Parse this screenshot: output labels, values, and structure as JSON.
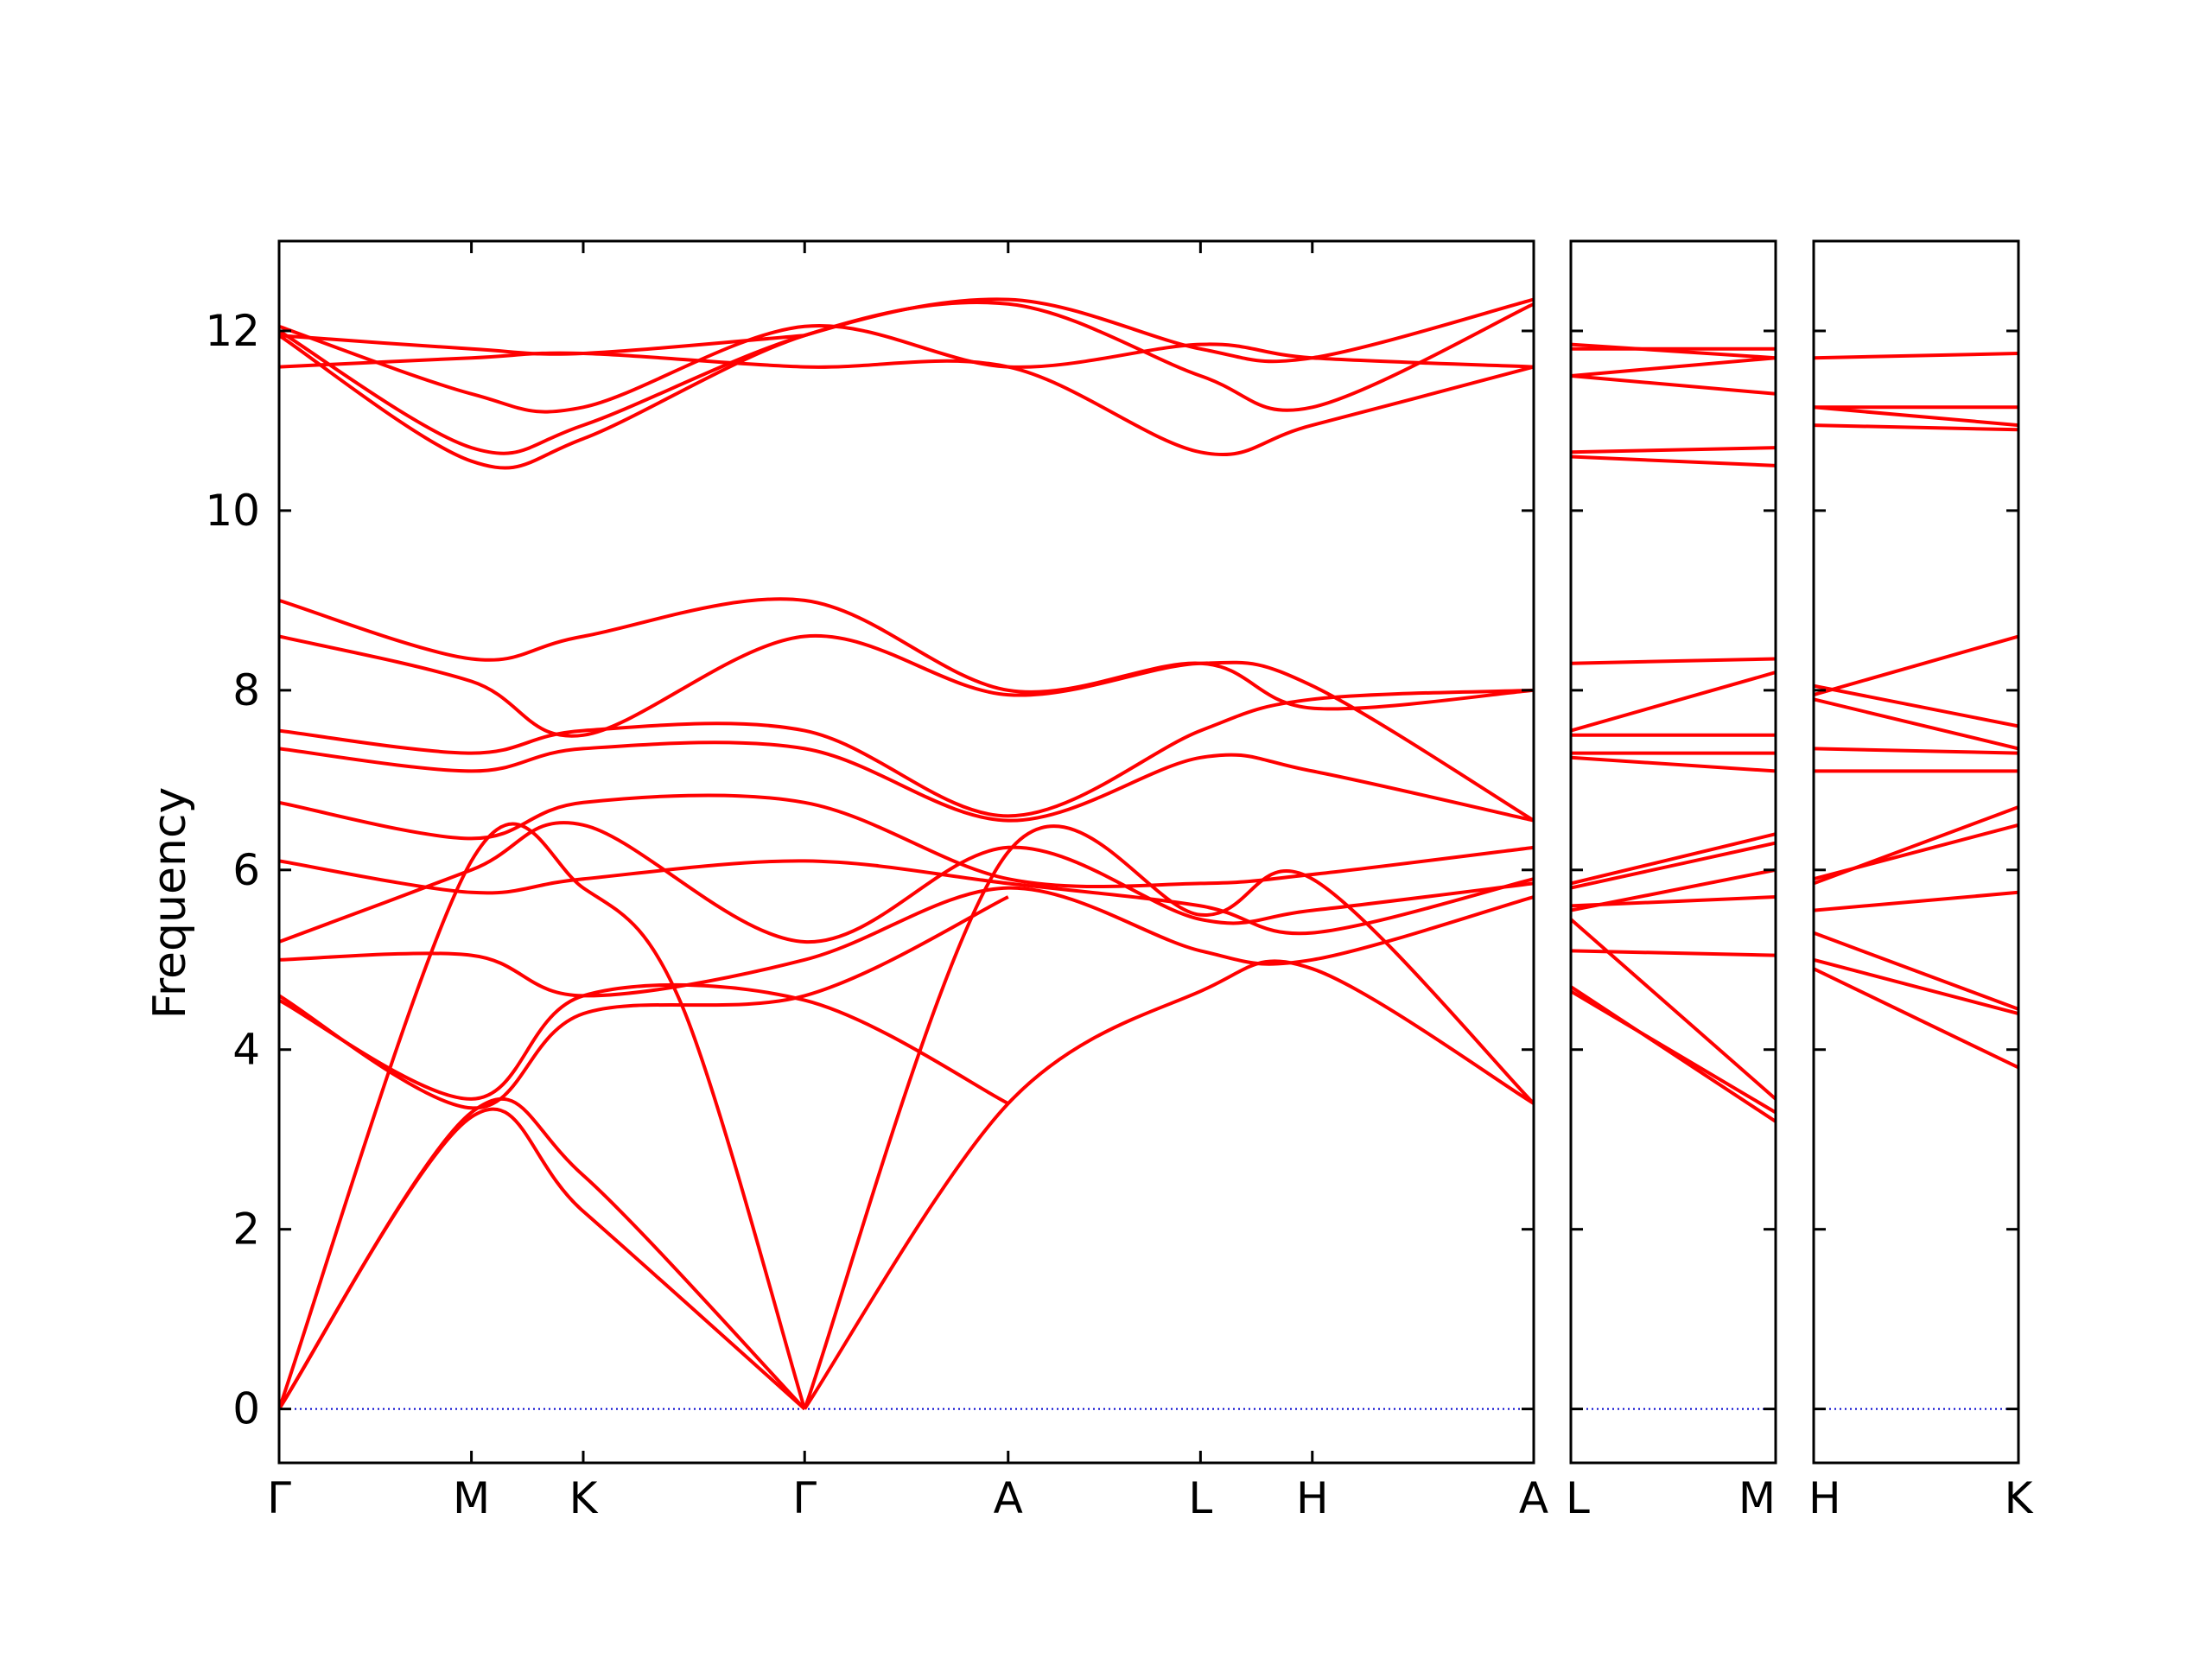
{
  "chart_data": {
    "type": "line",
    "title": "",
    "ylabel": "Frequency",
    "xlabel": "",
    "ylim": [
      -0.6,
      13.0
    ],
    "yticks": [
      0,
      2,
      4,
      6,
      8,
      10,
      12
    ],
    "grid": false,
    "legend": "none",
    "line_color": "#ff0000",
    "zero_line_color": "#0000cc",
    "panels": [
      {
        "x_labels": [
          "Γ",
          "M",
          "K",
          "Γ",
          "A",
          "L",
          "H",
          "A"
        ],
        "x_pos": [
          0,
          0.86,
          1.36,
          2.35,
          3.26,
          4.12,
          4.62,
          5.61
        ],
        "x_range": [
          0,
          5.61
        ],
        "bands": [
          {
            "x": [
              0,
              0.86,
              1.36,
              2.35
            ],
            "y": [
              0,
              3.25,
              2.2,
              0
            ]
          },
          {
            "x": [
              0,
              0.86,
              1.36,
              2.35
            ],
            "y": [
              0,
              3.3,
              2.6,
              0
            ]
          },
          {
            "x": [
              0,
              0.86,
              1.36,
              1.8,
              2.35
            ],
            "y": [
              0,
              6.1,
              5.8,
              4.5,
              0
            ]
          },
          {
            "x": [
              2.35,
              3.26,
              4.12,
              4.62,
              5.61
            ],
            "y": [
              0,
              3.4,
              4.65,
              4.9,
              3.4
            ]
          },
          {
            "x": [
              2.35,
              3.26,
              4.12,
              4.62,
              5.61
            ],
            "y": [
              0,
              6.2,
              5.5,
              5.9,
              3.4
            ]
          },
          {
            "x": [
              0,
              0.86,
              1.36,
              2.35,
              3.26
            ],
            "y": [
              4.55,
              3.45,
              4.6,
              4.55,
              3.4
            ]
          },
          {
            "x": [
              0,
              0.86,
              1.36,
              2.35,
              3.26
            ],
            "y": [
              4.6,
              3.35,
              4.4,
              4.6,
              5.7
            ]
          },
          {
            "x": [
              0,
              0.86,
              1.36,
              2.35,
              3.26,
              4.12,
              4.62,
              5.61
            ],
            "y": [
              5.0,
              5.05,
              4.6,
              5.0,
              5.8,
              5.1,
              5.0,
              5.7
            ]
          },
          {
            "x": [
              0,
              0.86,
              1.36,
              2.35,
              3.26,
              4.12,
              4.62,
              5.61
            ],
            "y": [
              5.2,
              6.0,
              6.5,
              5.2,
              6.25,
              5.45,
              5.55,
              5.85
            ]
          },
          {
            "x": [
              0,
              0.86,
              1.36,
              2.35,
              3.26,
              4.12,
              4.62,
              5.61
            ],
            "y": [
              6.1,
              5.75,
              5.9,
              6.1,
              5.85,
              5.6,
              5.3,
              5.9
            ]
          },
          {
            "x": [
              0,
              0.86,
              1.36,
              2.35,
              3.26,
              4.12,
              4.62,
              5.61
            ],
            "y": [
              6.75,
              6.35,
              6.75,
              6.75,
              5.9,
              5.85,
              5.95,
              6.25
            ]
          },
          {
            "x": [
              0,
              0.86,
              1.36,
              2.35,
              3.26,
              4.12,
              4.62,
              5.61
            ],
            "y": [
              7.35,
              7.1,
              7.35,
              7.35,
              6.55,
              7.25,
              7.1,
              6.55
            ]
          },
          {
            "x": [
              0,
              0.86,
              1.36,
              2.35,
              3.26,
              4.12,
              4.62,
              5.61
            ],
            "y": [
              7.55,
              7.3,
              7.55,
              7.55,
              6.6,
              7.55,
              7.9,
              8.0
            ]
          },
          {
            "x": [
              0,
              0.86,
              1.36,
              2.35,
              3.26,
              4.12,
              4.62,
              5.61
            ],
            "y": [
              8.6,
              8.1,
              7.5,
              8.6,
              7.95,
              8.3,
              8.05,
              6.55
            ]
          },
          {
            "x": [
              0,
              0.86,
              1.36,
              2.35,
              3.26,
              4.12,
              4.62,
              5.61
            ],
            "y": [
              9.0,
              8.35,
              8.6,
              9.0,
              8.0,
              8.3,
              7.8,
              8.0
            ]
          },
          {
            "x": [
              0,
              0.86,
              1.36,
              2.35,
              3.26,
              4.12,
              4.62,
              5.61
            ],
            "y": [
              11.6,
              11.7,
              11.75,
              11.6,
              11.6,
              10.65,
              10.95,
              11.6
            ]
          },
          {
            "x": [
              0,
              0.86,
              1.36,
              2.35,
              3.26,
              4.12,
              4.62,
              5.61
            ],
            "y": [
              11.95,
              10.55,
              10.8,
              11.95,
              12.3,
              11.5,
              11.15,
              12.3
            ]
          },
          {
            "x": [
              0,
              0.86,
              1.36,
              2.35,
              3.26,
              4.12,
              4.62,
              5.61
            ],
            "y": [
              12.0,
              10.7,
              10.95,
              11.95,
              12.35,
              11.8,
              11.7,
              12.35
            ]
          },
          {
            "x": [
              0,
              0.86,
              1.36,
              2.35,
              3.26,
              4.12,
              4.62,
              5.61
            ],
            "y": [
              12.05,
              11.3,
              11.15,
              12.05,
              11.6,
              11.85,
              11.7,
              11.6
            ]
          },
          {
            "x": [
              0,
              0.86,
              1.36,
              2.35
            ],
            "y": [
              11.95,
              11.8,
              11.75,
              11.95
            ]
          }
        ]
      },
      {
        "x_labels": [
          "L",
          "M"
        ],
        "x_pos": [
          0,
          0.86
        ],
        "x_range": [
          0,
          0.86
        ],
        "bands": [
          {
            "x": [
              0,
              0.86
            ],
            "y": [
              4.7,
              3.2
            ]
          },
          {
            "x": [
              0,
              0.86
            ],
            "y": [
              4.65,
              3.3
            ]
          },
          {
            "x": [
              0,
              0.86
            ],
            "y": [
              5.45,
              3.45
            ]
          },
          {
            "x": [
              0,
              0.86
            ],
            "y": [
              5.1,
              5.05
            ]
          },
          {
            "x": [
              0,
              0.86
            ],
            "y": [
              5.6,
              5.7
            ]
          },
          {
            "x": [
              0,
              0.86
            ],
            "y": [
              5.55,
              6.0
            ]
          },
          {
            "x": [
              0,
              0.86
            ],
            "y": [
              5.8,
              6.3
            ]
          },
          {
            "x": [
              0,
              0.86
            ],
            "y": [
              5.85,
              6.4
            ]
          },
          {
            "x": [
              0,
              0.86
            ],
            "y": [
              7.25,
              7.1
            ]
          },
          {
            "x": [
              0,
              0.86
            ],
            "y": [
              7.3,
              7.3
            ]
          },
          {
            "x": [
              0,
              0.86
            ],
            "y": [
              7.5,
              7.5
            ]
          },
          {
            "x": [
              0,
              0.86
            ],
            "y": [
              8.3,
              8.35
            ]
          },
          {
            "x": [
              0,
              0.86
            ],
            "y": [
              7.55,
              8.2
            ]
          },
          {
            "x": [
              0,
              0.86
            ],
            "y": [
              10.6,
              10.5
            ]
          },
          {
            "x": [
              0,
              0.86
            ],
            "y": [
              10.65,
              10.7
            ]
          },
          {
            "x": [
              0,
              0.86
            ],
            "y": [
              11.5,
              11.3
            ]
          },
          {
            "x": [
              0,
              0.86
            ],
            "y": [
              11.5,
              11.7
            ]
          },
          {
            "x": [
              0,
              0.86
            ],
            "y": [
              11.85,
              11.7
            ]
          },
          {
            "x": [
              0,
              0.86
            ],
            "y": [
              11.8,
              11.8
            ]
          }
        ]
      },
      {
        "x_labels": [
          "H",
          "K"
        ],
        "x_pos": [
          0,
          0.86
        ],
        "x_range": [
          0,
          0.86
        ],
        "bands": [
          {
            "x": [
              0,
              0.86
            ],
            "y": [
              4.9,
              3.8
            ]
          },
          {
            "x": [
              0,
              0.86
            ],
            "y": [
              5.0,
              4.4
            ]
          },
          {
            "x": [
              0,
              0.86
            ],
            "y": [
              5.3,
              4.45
            ]
          },
          {
            "x": [
              0,
              0.86
            ],
            "y": [
              5.55,
              5.75
            ]
          },
          {
            "x": [
              0,
              0.86
            ],
            "y": [
              5.9,
              6.5
            ]
          },
          {
            "x": [
              0,
              0.86
            ],
            "y": [
              5.85,
              6.7
            ]
          },
          {
            "x": [
              0,
              0.86
            ],
            "y": [
              7.1,
              7.1
            ]
          },
          {
            "x": [
              0,
              0.86
            ],
            "y": [
              7.35,
              7.3
            ]
          },
          {
            "x": [
              0,
              0.86
            ],
            "y": [
              7.9,
              7.35
            ]
          },
          {
            "x": [
              0,
              0.86
            ],
            "y": [
              8.05,
              7.6
            ]
          },
          {
            "x": [
              0,
              0.86
            ],
            "y": [
              7.95,
              8.6
            ]
          },
          {
            "x": [
              0,
              0.86
            ],
            "y": [
              10.95,
              10.9
            ]
          },
          {
            "x": [
              0,
              0.86
            ],
            "y": [
              11.15,
              10.95
            ]
          },
          {
            "x": [
              0,
              0.86
            ],
            "y": [
              11.15,
              11.15
            ]
          },
          {
            "x": [
              0,
              0.86
            ],
            "y": [
              11.7,
              11.75
            ]
          }
        ]
      }
    ]
  }
}
